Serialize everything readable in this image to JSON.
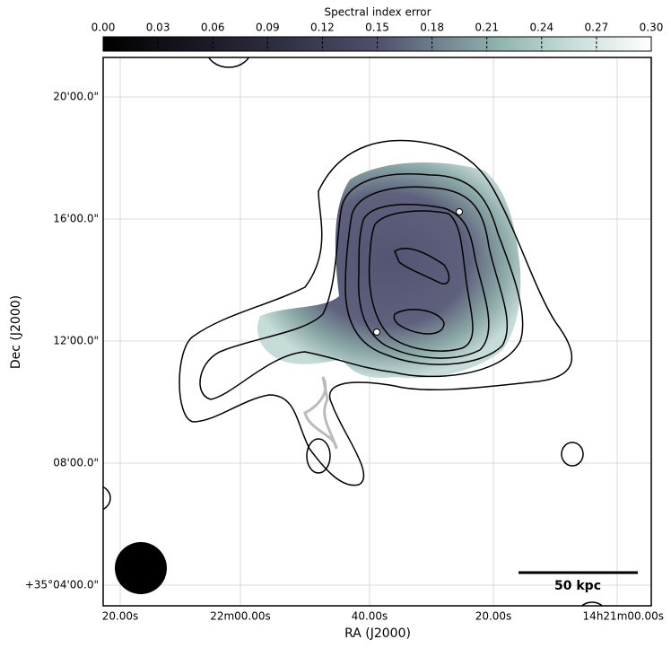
{
  "chart_data": {
    "type": "image",
    "colorbar": {
      "label": "Spectral index error",
      "lim": [
        0,
        0.3
      ],
      "ticks": [
        {
          "value": 0,
          "label": "0.00"
        },
        {
          "value": 0.03,
          "label": "0.03"
        },
        {
          "value": 0.06,
          "label": "0.06"
        },
        {
          "value": 0.09,
          "label": "0.09"
        },
        {
          "value": 0.12,
          "label": "0.12"
        },
        {
          "value": 0.15,
          "label": "0.15"
        },
        {
          "value": 0.18,
          "label": "0.18"
        },
        {
          "value": 0.21,
          "label": "0.21"
        },
        {
          "value": 0.24,
          "label": "0.24"
        },
        {
          "value": 0.27,
          "label": "0.27"
        },
        {
          "value": 0.3,
          "label": "0.30"
        }
      ]
    },
    "x_label": "RA (J2000)",
    "y_label": "Dec (J2000)",
    "x_tick_labels": [
      "20.00s",
      "22m00.00s",
      "40.00s",
      "20.00s",
      "14h21m00.00s"
    ],
    "y_tick_labels": [
      "20'00.0\"",
      "16'00.0\"",
      "12'00.0\"",
      "08'00.0\"",
      "+35°04'00.0\""
    ],
    "scale_bar_label": "50 kpc",
    "grid": true
  }
}
